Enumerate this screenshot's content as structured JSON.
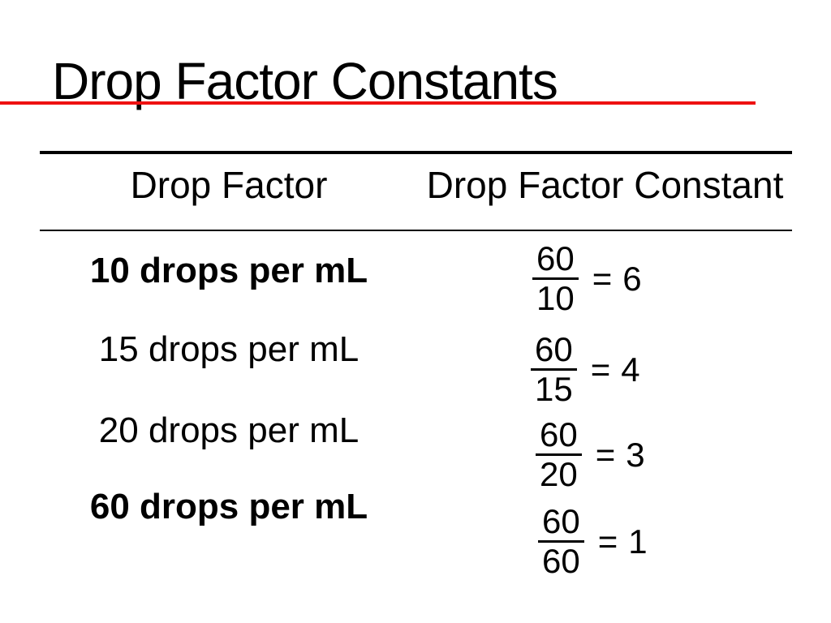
{
  "slide": {
    "title": "Drop Factor Constants",
    "background": "#ffffff"
  },
  "colors": {
    "title_underline_red": "#ee1111",
    "text": "#000000",
    "table_rules": "#000000"
  },
  "table": {
    "columns": [
      "Drop Factor",
      "Drop Factor Constant"
    ],
    "rows": [
      {
        "drop_factor": "10 drops per mL",
        "numerator": "60",
        "denominator": "10",
        "equals": "=",
        "result": "6"
      },
      {
        "drop_factor": "15 drops per mL",
        "numerator": "60",
        "denominator": "15",
        "equals": "=",
        "result": "4"
      },
      {
        "drop_factor": "20 drops per mL",
        "numerator": "60",
        "denominator": "20",
        "equals": "=",
        "result": "3"
      },
      {
        "drop_factor": "60 drops per mL",
        "numerator": "60",
        "denominator": "60",
        "equals": "=",
        "result": "1"
      }
    ]
  }
}
